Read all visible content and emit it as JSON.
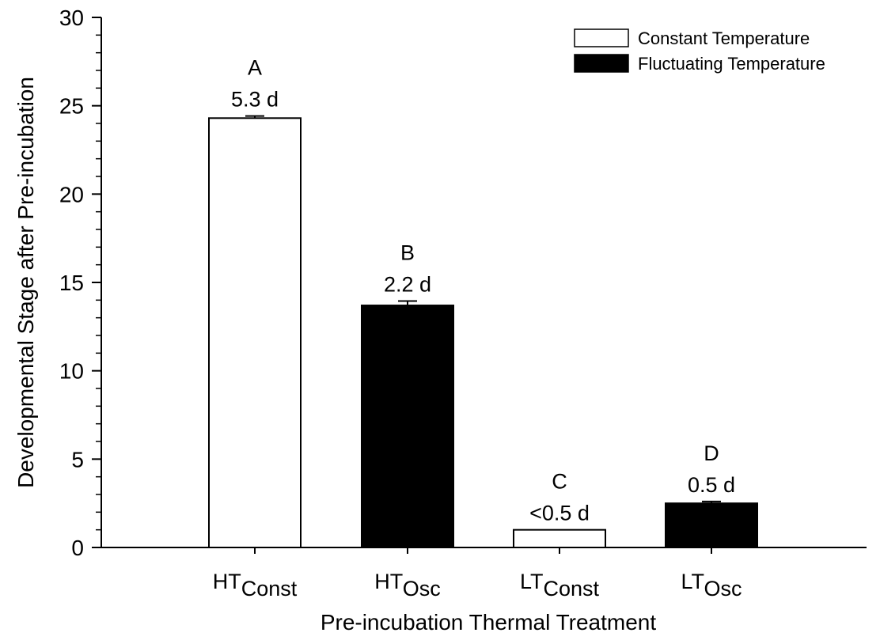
{
  "chart_data": {
    "type": "bar",
    "title": "",
    "xlabel": "Pre-incubation Thermal Treatment",
    "ylabel": "Developmental Stage after Pre-incubation",
    "ylim": [
      0,
      30
    ],
    "yticks": [
      0,
      5,
      10,
      15,
      20,
      25,
      30
    ],
    "grid": false,
    "legend_position": "top-right",
    "legend": [
      {
        "label": "Constant Temperature",
        "fill": "#ffffff"
      },
      {
        "label": "Fluctuating Temperature",
        "fill": "#000000"
      }
    ],
    "bars": [
      {
        "label_main": "HT",
        "label_sub": "Const",
        "value": 24.3,
        "error": 0.12,
        "series": "Constant Temperature",
        "fill": "#ffffff",
        "letter": "A",
        "days": "5.3 d"
      },
      {
        "label_main": "HT",
        "label_sub": "Osc",
        "value": 13.7,
        "error": 0.25,
        "series": "Fluctuating Temperature",
        "fill": "#000000",
        "letter": "B",
        "days": "2.2 d"
      },
      {
        "label_main": "LT",
        "label_sub": "Const",
        "value": 1.0,
        "error": 0,
        "series": "Constant Temperature",
        "fill": "#ffffff",
        "letter": "C",
        "days": "<0.5 d"
      },
      {
        "label_main": "LT",
        "label_sub": "Osc",
        "value": 2.5,
        "error": 0.1,
        "series": "Fluctuating Temperature",
        "fill": "#000000",
        "letter": "D",
        "days": "0.5 d"
      }
    ]
  }
}
